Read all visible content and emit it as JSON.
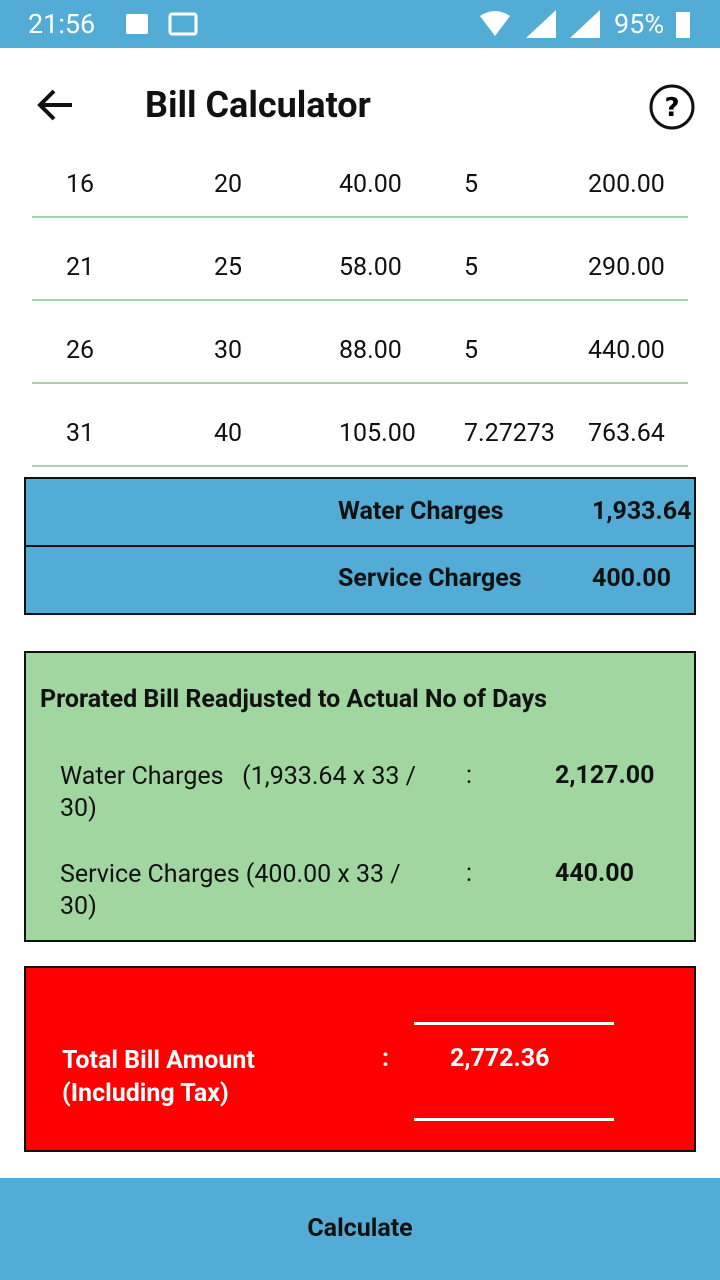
{
  "status_bar": {
    "time": "21:56",
    "battery": "95%"
  },
  "header": {
    "title": "Bill Calculator"
  },
  "table": {
    "rows": [
      [
        "16",
        "20",
        "40.00",
        "5",
        "200.00"
      ],
      [
        "21",
        "25",
        "58.00",
        "5",
        "290.00"
      ],
      [
        "26",
        "30",
        "88.00",
        "5",
        "440.00"
      ],
      [
        "31",
        "40",
        "105.00",
        "7.27273",
        "763.64"
      ]
    ]
  },
  "charges": [
    {
      "label": "Water Charges",
      "value": "1,933.64"
    },
    {
      "label": "Service Charges",
      "value": "400.00"
    }
  ],
  "prorated": {
    "title": "Prorated Bill Readjusted to Actual No of Days",
    "items": [
      {
        "label": "Water Charges   (1,933.64 x 33 / 30)",
        "separator": ":",
        "value": "2,127.00"
      },
      {
        "label": "Service Charges (400.00 x 33 / 30)",
        "separator": ":",
        "value": "440.00"
      }
    ]
  },
  "total": {
    "label": "Total Bill Amount (Including Tax)",
    "separator": ":",
    "value": "2,772.36"
  },
  "button": {
    "label": "Calculate"
  }
}
